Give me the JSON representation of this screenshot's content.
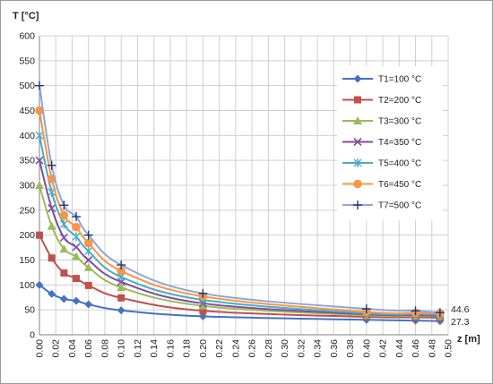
{
  "chart_data": {
    "type": "line",
    "ylabel": "T [°C]",
    "xlabel": "z [m]",
    "xlim": [
      0.0,
      0.5
    ],
    "ylim": [
      0,
      600
    ],
    "x_ticks": [
      "0.00",
      "0.02",
      "0.04",
      "0.06",
      "0.08",
      "0.10",
      "0.12",
      "0.14",
      "0.16",
      "0.18",
      "0.20",
      "0.22",
      "0.24",
      "0.26",
      "0.28",
      "0.30",
      "0.32",
      "0.34",
      "0.36",
      "0.38",
      "0.40",
      "0.42",
      "0.44",
      "0.46",
      "0.48",
      "0.50"
    ],
    "y_ticks": [
      "0",
      "50",
      "100",
      "150",
      "200",
      "250",
      "300",
      "350",
      "400",
      "450",
      "500",
      "550",
      "600"
    ],
    "grid": true,
    "legend_position": "right",
    "annotations": [
      "44.6",
      "27.3"
    ],
    "x": [
      0.0,
      0.015,
      0.03,
      0.045,
      0.06,
      0.1,
      0.2,
      0.4,
      0.46,
      0.49
    ],
    "series": [
      {
        "name": "T1=100 °C",
        "color": "#4572c4",
        "marker": "diamond",
        "values": [
          100,
          82,
          72,
          68,
          61,
          49,
          37,
          30,
          28.5,
          27.3
        ]
      },
      {
        "name": "T2=200 °C",
        "color": "#c0504d",
        "marker": "square",
        "values": [
          200,
          154,
          124,
          113,
          99,
          74,
          48,
          36,
          35,
          34
        ]
      },
      {
        "name": "T3=300 °C",
        "color": "#9bbb59",
        "marker": "triangle",
        "values": [
          300,
          218,
          172,
          157,
          135,
          95,
          58,
          39,
          38,
          37
        ]
      },
      {
        "name": "T4=350 °C",
        "color": "#7f4f9f",
        "marker": "x",
        "values": [
          350,
          254,
          195,
          176,
          150,
          106,
          63,
          41,
          39.5,
          38.5
        ]
      },
      {
        "name": "T5=400 °C",
        "color": "#4bacc6",
        "marker": "star",
        "values": [
          400,
          286,
          222,
          197,
          168,
          116,
          70,
          43,
          41.5,
          40.5
        ]
      },
      {
        "name": "T6=450 °C",
        "color": "#f79646",
        "marker": "circle",
        "values": [
          450,
          313,
          240,
          216,
          184,
          128,
          77,
          46,
          44,
          43
        ]
      },
      {
        "name": "T7=500 °C",
        "color": "#8fa6d6",
        "marker": "plus",
        "values": [
          500,
          340,
          260,
          237,
          200,
          140,
          83,
          52,
          48,
          44.6
        ]
      }
    ]
  }
}
